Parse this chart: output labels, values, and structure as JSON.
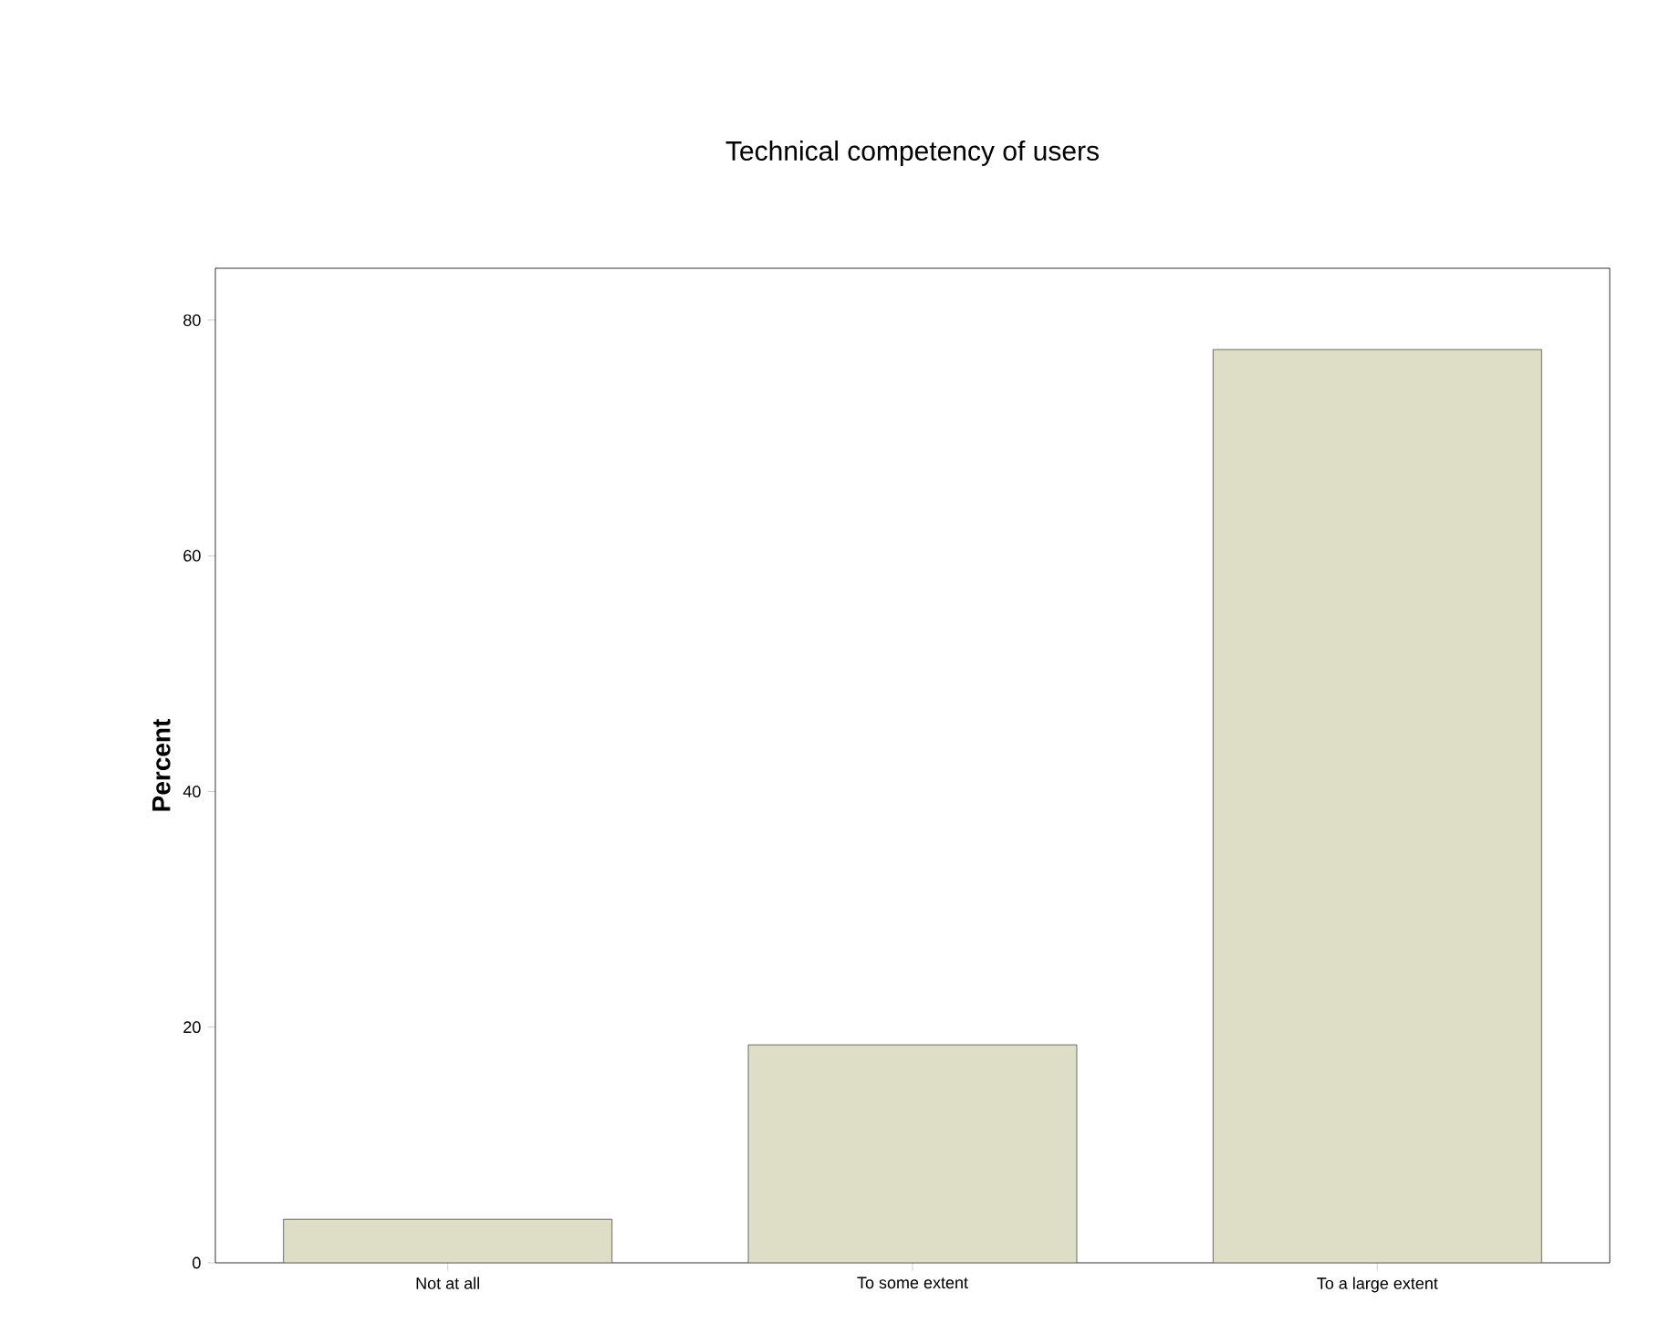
{
  "chart_data": {
    "type": "bar",
    "title": "Technical competency of users",
    "ylabel": "Percent",
    "categories": [
      "Not at all",
      "To some extent",
      "To a large extent"
    ],
    "values": [
      3.7,
      18.5,
      77.5
    ],
    "color": "#dedec6",
    "ylim": [
      0,
      84.4
    ],
    "yticks": [
      0,
      20,
      40,
      60,
      80
    ]
  }
}
